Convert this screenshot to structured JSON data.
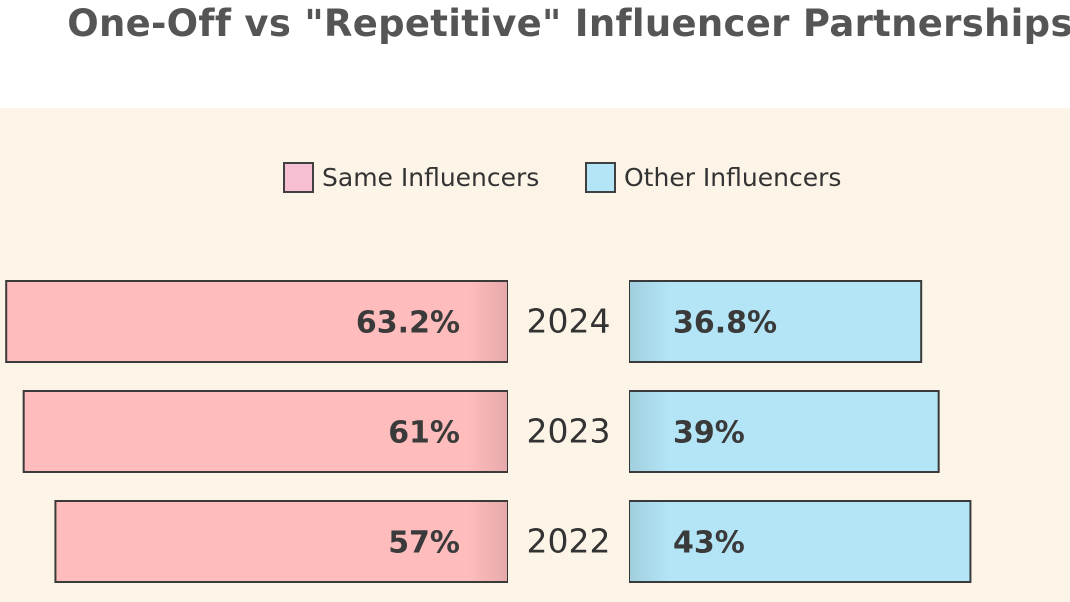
{
  "title": "One-Off vs \"Repetitive\" Influencer Partnerships",
  "colors": {
    "same": "#ffbcbc",
    "other": "#b3e5f6",
    "same_legend": "#f7c0d2",
    "panel_bg": "#fdf4e8"
  },
  "chart_data": {
    "type": "bar",
    "orientation": "diverging-horizontal",
    "categories": [
      "2024",
      "2023",
      "2022"
    ],
    "series": [
      {
        "name": "Same Influencers",
        "values": [
          63.2,
          61,
          57
        ],
        "labels": [
          "63.2%",
          "61%",
          "57%"
        ]
      },
      {
        "name": "Other Influencers",
        "values": [
          36.8,
          39,
          43
        ],
        "labels": [
          "36.8%",
          "39%",
          "43%"
        ]
      }
    ],
    "unit": "%",
    "legend": "top-center",
    "grid": false
  }
}
